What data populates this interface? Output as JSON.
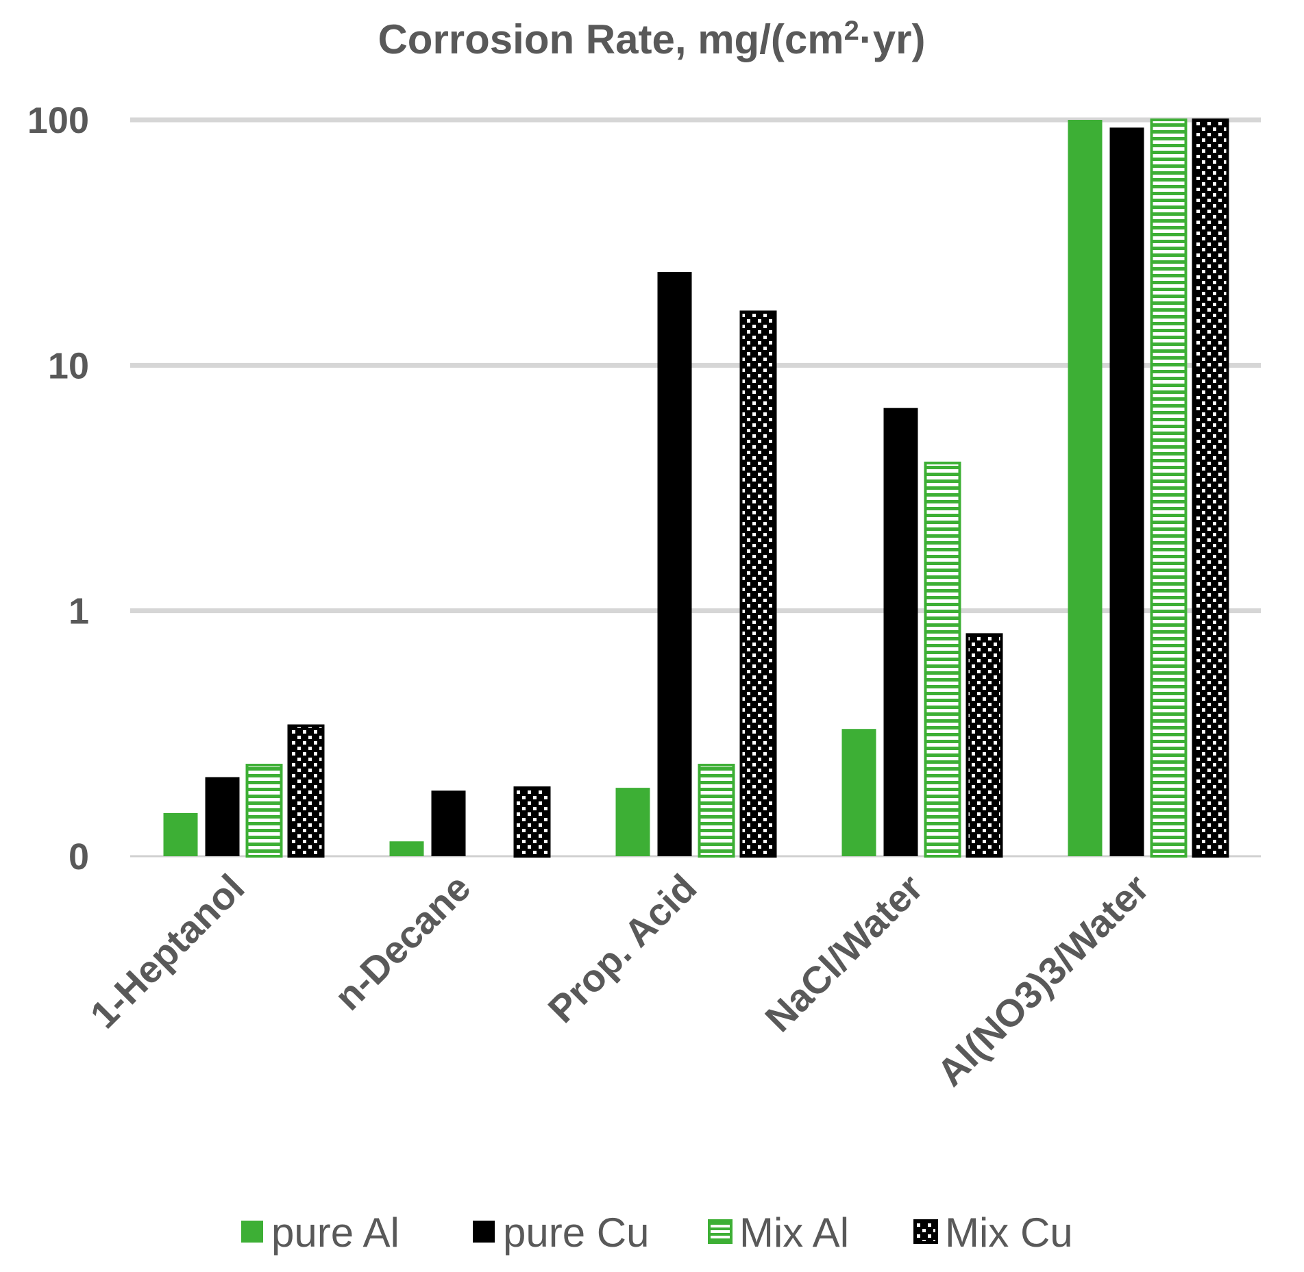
{
  "chart_data": {
    "type": "bar",
    "title": "Corrosion Rate, mg/(cm",
    "title_sup": "2",
    "title_tail": "·yr)",
    "xlabel": "",
    "ylabel": "",
    "yscale": "log",
    "ylim": [
      0.1,
      100
    ],
    "yticks": [
      {
        "value": 0.1,
        "label": "0"
      },
      {
        "value": 1,
        "label": "1"
      },
      {
        "value": 10,
        "label": "10"
      },
      {
        "value": 100,
        "label": "100"
      }
    ],
    "grid": true,
    "legend_position": "bottom",
    "categories": [
      "1-Heptanol",
      "n-Decane",
      "Prop. Acid",
      "NaCl/Water",
      "Al(NO3)3/Water"
    ],
    "series": [
      {
        "name": "pure Al",
        "style": "solid-green",
        "values": [
          0.15,
          0.115,
          0.19,
          0.33,
          100
        ]
      },
      {
        "name": "pure Cu",
        "style": "solid-black",
        "values": [
          0.21,
          0.185,
          24,
          6.7,
          93
        ]
      },
      {
        "name": "Mix Al",
        "style": "striped-green",
        "values": [
          0.235,
          null,
          0.235,
          4.0,
          100
        ]
      },
      {
        "name": "Mix Cu",
        "style": "checker-black",
        "values": [
          0.34,
          0.19,
          16.5,
          0.8,
          100
        ]
      }
    ]
  },
  "colors": {
    "green": "#3daf35",
    "black": "#000000",
    "text": "#595959",
    "grid": "#d6d6d6"
  }
}
